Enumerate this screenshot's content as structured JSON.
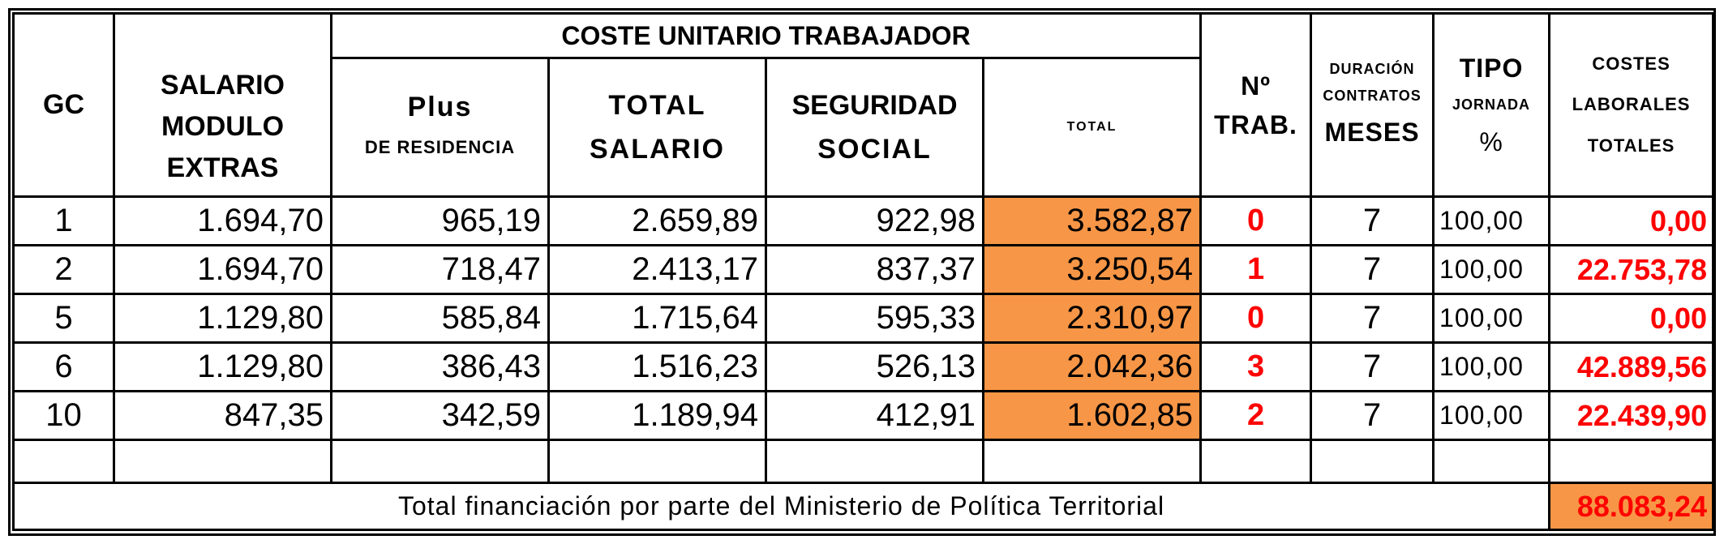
{
  "header": {
    "gc": "GC",
    "group_title": "COSTE UNITARIO TRABAJADOR",
    "salario": [
      "SALARIO",
      "MODULO",
      "EXTRAS"
    ],
    "plus": [
      "Plus",
      "DE RESIDENCIA"
    ],
    "total_salario": [
      "TOTAL",
      "SALARIO"
    ],
    "seguridad": [
      "SEGURIDAD",
      "SOCIAL"
    ],
    "total": "TOTAL",
    "n_trab": [
      "Nº",
      "TRAB."
    ],
    "duracion": [
      "DURACIÓN",
      "CONTRATOS",
      "MESES"
    ],
    "tipo": [
      "TIPO",
      "JORNADA",
      "%"
    ],
    "costes": [
      "COSTES",
      "LABORALES",
      "TOTALES"
    ]
  },
  "rows": [
    {
      "gc": "1",
      "salario": "1.694,70",
      "plus": "965,19",
      "total_salario": "2.659,89",
      "seguridad": "922,98",
      "total": "3.582,87",
      "n_trab": "0",
      "meses": "7",
      "jornada": "100,00",
      "coste": "0,00"
    },
    {
      "gc": "2",
      "salario": "1.694,70",
      "plus": "718,47",
      "total_salario": "2.413,17",
      "seguridad": "837,37",
      "total": "3.250,54",
      "n_trab": "1",
      "meses": "7",
      "jornada": "100,00",
      "coste": "22.753,78"
    },
    {
      "gc": "5",
      "salario": "1.129,80",
      "plus": "585,84",
      "total_salario": "1.715,64",
      "seguridad": "595,33",
      "total": "2.310,97",
      "n_trab": "0",
      "meses": "7",
      "jornada": "100,00",
      "coste": "0,00"
    },
    {
      "gc": "6",
      "salario": "1.129,80",
      "plus": "386,43",
      "total_salario": "1.516,23",
      "seguridad": "526,13",
      "total": "2.042,36",
      "n_trab": "3",
      "meses": "7",
      "jornada": "100,00",
      "coste": "42.889,56"
    },
    {
      "gc": "10",
      "salario": "847,35",
      "plus": "342,59",
      "total_salario": "1.189,94",
      "seguridad": "412,91",
      "total": "1.602,85",
      "n_trab": "2",
      "meses": "7",
      "jornada": "100,00",
      "coste": "22.439,90"
    }
  ],
  "footer": {
    "label": "Total financiación por parte del Ministerio de Política Territorial",
    "total": "88.083,24"
  },
  "colors": {
    "highlight": "#f79646",
    "emphasis_text": "#ff0000"
  }
}
